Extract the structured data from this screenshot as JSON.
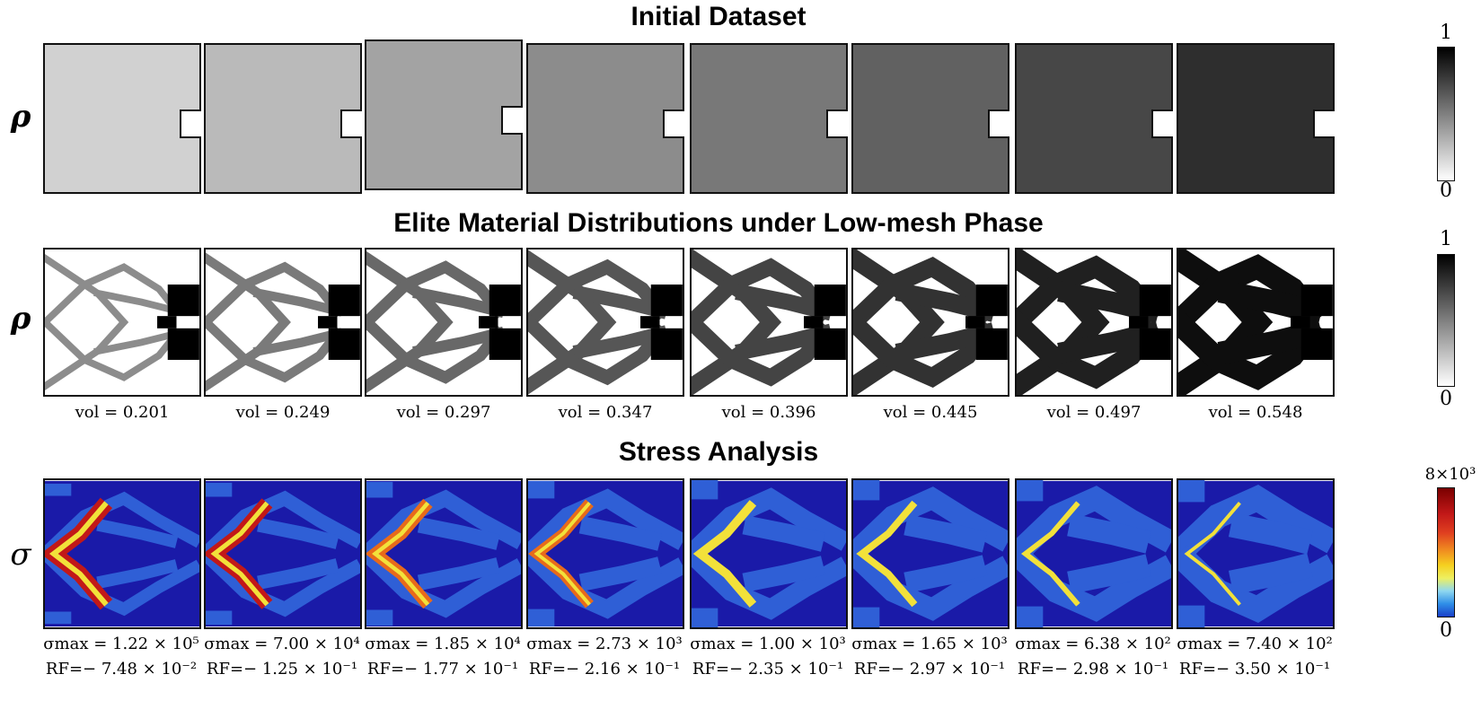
{
  "titles": {
    "initial": "Initial Dataset",
    "elite": "Elite Material Distributions under Low-mesh Phase",
    "stress": "Stress Analysis"
  },
  "row_labels": {
    "rho1": "ρ",
    "rho2": "ρ",
    "sigma": "σ"
  },
  "colorbars": {
    "rho1": {
      "max": "1",
      "min": "0"
    },
    "rho2": {
      "max": "1",
      "min": "0"
    },
    "sigma": {
      "max": "8×10³",
      "min": "0"
    }
  },
  "initial_densities": [
    0.18,
    0.27,
    0.36,
    0.45,
    0.53,
    0.62,
    0.72,
    0.82
  ],
  "elite_volumes": [
    "vol = 0.201",
    "vol = 0.249",
    "vol = 0.297",
    "vol = 0.347",
    "vol = 0.396",
    "vol = 0.445",
    "vol = 0.497",
    "vol = 0.548"
  ],
  "stress_max": [
    "σmax = 1.22 × 10⁵",
    "σmax = 7.00 × 10⁴",
    "σmax = 1.85 × 10⁴",
    "σmax = 2.73 × 10³",
    "σmax = 1.00 × 10³",
    "σmax = 1.65 × 10³",
    "σmax = 6.38 × 10²",
    "σmax = 7.40 × 10²"
  ],
  "reaction_force": [
    "RF=− 7.48 × 10⁻²",
    "RF=− 1.25 × 10⁻¹",
    "RF=− 1.77 × 10⁻¹",
    "RF=− 2.16 × 10⁻¹",
    "RF=− 2.35 × 10⁻¹",
    "RF=− 2.97 × 10⁻¹",
    "RF=− 2.98 × 10⁻¹",
    "RF=− 3.50 × 10⁻¹"
  ],
  "colors": {
    "stress_background": "#1a1aa8",
    "stress_structure": "#2f5fd6",
    "stress_hot": "#c21818",
    "stress_warm": "#f2e13a"
  }
}
